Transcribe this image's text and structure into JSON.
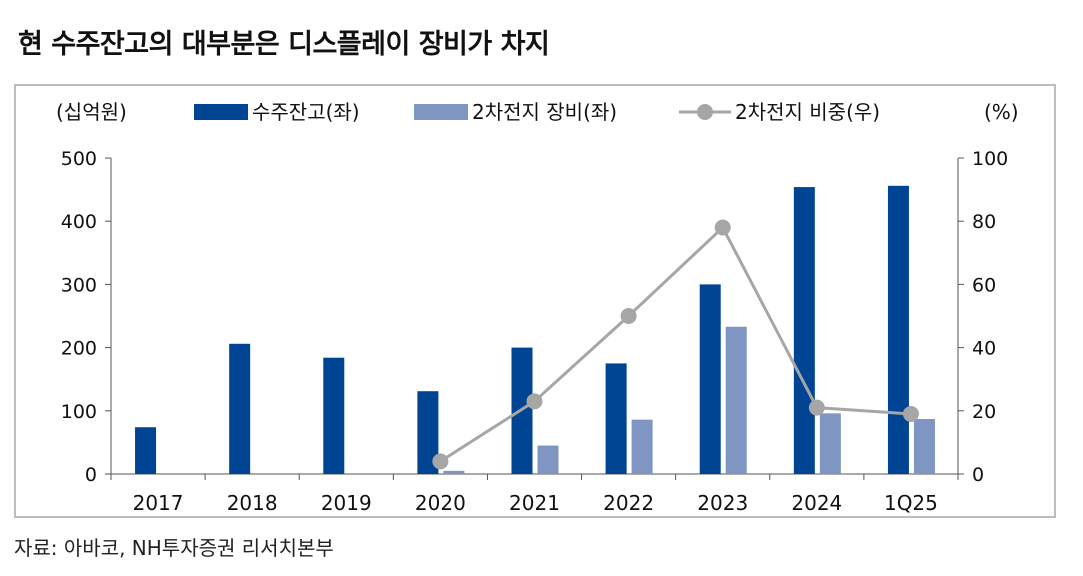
{
  "title": "현 수주잔고의 대부분은 디스플레이 장비가 차지",
  "source": "자료: 아바코, NH투자증권 리서치본부",
  "colors": {
    "backlog": "#004494",
    "battery": "#7f96c2",
    "share": "#a6a6a6"
  },
  "chart_data": {
    "type": "bar",
    "categories": [
      "2017",
      "2018",
      "2019",
      "2020",
      "2021",
      "2022",
      "2023",
      "2024",
      "1Q25"
    ],
    "left_axis_unit": "(십억원)",
    "right_axis_unit": "(%)",
    "ylim_left": [
      0,
      500
    ],
    "ylim_right": [
      0,
      100
    ],
    "yticks_left": [
      "0",
      "100",
      "200",
      "300",
      "400",
      "500"
    ],
    "yticks_right": [
      "0",
      "20",
      "40",
      "60",
      "80",
      "100"
    ],
    "legend_position": "top",
    "grid": false,
    "series": [
      {
        "name": "수주잔고(좌)",
        "type": "bar",
        "axis": "left",
        "values": [
          74,
          206,
          184,
          131,
          200,
          175,
          300,
          454,
          456
        ]
      },
      {
        "name": "2차전지 장비(좌)",
        "type": "bar",
        "axis": "left",
        "values": [
          null,
          null,
          null,
          5,
          45,
          86,
          233,
          96,
          87
        ]
      },
      {
        "name": "2차전지 비중(우)",
        "type": "line",
        "axis": "right",
        "values": [
          null,
          null,
          null,
          4,
          23,
          50,
          78,
          21,
          19
        ]
      }
    ]
  }
}
